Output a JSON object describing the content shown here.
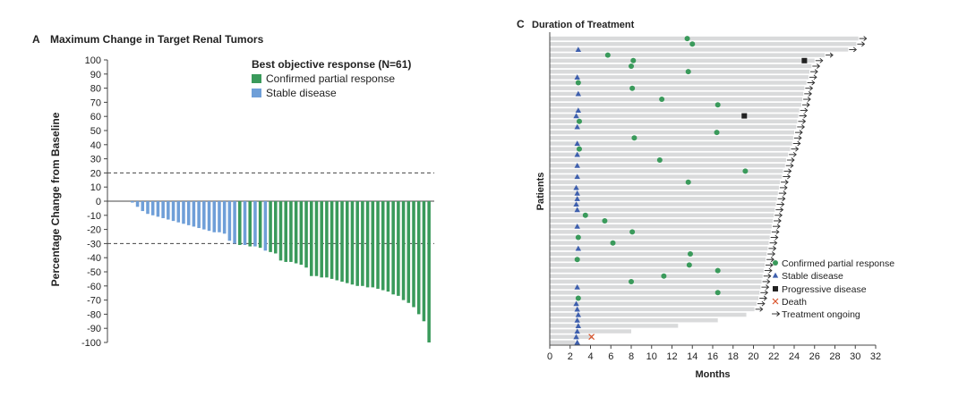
{
  "colors": {
    "partial": "#3a9a5b",
    "stable": "#6f9fd8",
    "bar_c": "#d9dadb",
    "triangle": "#3e5fad",
    "progressive": "#222222",
    "death": "#d9542b",
    "axis": "#444444"
  },
  "chart_data": [
    {
      "type": "bar",
      "panel_label": "A",
      "title": "Maximum Change in Target Renal Tumors",
      "ylabel": "Percentage Change from Baseline",
      "xlabel": "",
      "ylim": [
        -100,
        100
      ],
      "yticks": [
        100,
        90,
        80,
        70,
        60,
        50,
        40,
        30,
        20,
        10,
        0,
        -10,
        -20,
        -30,
        -40,
        -50,
        -60,
        -70,
        -80,
        -90,
        -100
      ],
      "reference_lines": [
        20,
        -30
      ],
      "legend": {
        "title": "Best objective response (N=61)",
        "placement": "top-right",
        "entries": [
          {
            "label": "Confirmed partial response",
            "color_key": "partial"
          },
          {
            "label": "Stable disease",
            "color_key": "stable"
          }
        ]
      },
      "bars": [
        {
          "value": -1,
          "response": "stable"
        },
        {
          "value": -4,
          "response": "stable"
        },
        {
          "value": -7,
          "response": "stable"
        },
        {
          "value": -9,
          "response": "stable"
        },
        {
          "value": -10,
          "response": "stable"
        },
        {
          "value": -11,
          "response": "stable"
        },
        {
          "value": -12,
          "response": "stable"
        },
        {
          "value": -13,
          "response": "stable"
        },
        {
          "value": -14,
          "response": "stable"
        },
        {
          "value": -15,
          "response": "stable"
        },
        {
          "value": -16,
          "response": "stable"
        },
        {
          "value": -17,
          "response": "stable"
        },
        {
          "value": -18,
          "response": "stable"
        },
        {
          "value": -19,
          "response": "stable"
        },
        {
          "value": -20,
          "response": "stable"
        },
        {
          "value": -21,
          "response": "stable"
        },
        {
          "value": -22,
          "response": "stable"
        },
        {
          "value": -22,
          "response": "stable"
        },
        {
          "value": -23,
          "response": "stable"
        },
        {
          "value": -28,
          "response": "stable"
        },
        {
          "value": -30,
          "response": "stable"
        },
        {
          "value": -31,
          "response": "partial"
        },
        {
          "value": -31,
          "response": "stable"
        },
        {
          "value": -32,
          "response": "partial"
        },
        {
          "value": -32,
          "response": "stable"
        },
        {
          "value": -33,
          "response": "partial"
        },
        {
          "value": -35,
          "response": "stable"
        },
        {
          "value": -36,
          "response": "partial"
        },
        {
          "value": -37,
          "response": "partial"
        },
        {
          "value": -42,
          "response": "partial"
        },
        {
          "value": -43,
          "response": "partial"
        },
        {
          "value": -43,
          "response": "partial"
        },
        {
          "value": -44,
          "response": "partial"
        },
        {
          "value": -45,
          "response": "partial"
        },
        {
          "value": -47,
          "response": "partial"
        },
        {
          "value": -53,
          "response": "partial"
        },
        {
          "value": -53,
          "response": "partial"
        },
        {
          "value": -54,
          "response": "partial"
        },
        {
          "value": -54,
          "response": "partial"
        },
        {
          "value": -55,
          "response": "partial"
        },
        {
          "value": -56,
          "response": "partial"
        },
        {
          "value": -57,
          "response": "partial"
        },
        {
          "value": -58,
          "response": "partial"
        },
        {
          "value": -59,
          "response": "partial"
        },
        {
          "value": -60,
          "response": "partial"
        },
        {
          "value": -60,
          "response": "partial"
        },
        {
          "value": -61,
          "response": "partial"
        },
        {
          "value": -61,
          "response": "partial"
        },
        {
          "value": -62,
          "response": "partial"
        },
        {
          "value": -63,
          "response": "partial"
        },
        {
          "value": -64,
          "response": "partial"
        },
        {
          "value": -66,
          "response": "partial"
        },
        {
          "value": -67,
          "response": "partial"
        },
        {
          "value": -70,
          "response": "partial"
        },
        {
          "value": -72,
          "response": "partial"
        },
        {
          "value": -75,
          "response": "partial"
        },
        {
          "value": -80,
          "response": "partial"
        },
        {
          "value": -85,
          "response": "partial"
        },
        {
          "value": -100,
          "response": "partial"
        }
      ]
    },
    {
      "type": "swimmer",
      "panel_label": "C",
      "title": "Duration of Treatment",
      "xlabel": "Months",
      "ylabel": "Patients",
      "xlim": [
        0,
        32
      ],
      "xticks": [
        0,
        2,
        4,
        6,
        8,
        10,
        12,
        14,
        16,
        18,
        20,
        22,
        24,
        26,
        28,
        30,
        32
      ],
      "legend": {
        "placement": "bottom-right",
        "entries": [
          {
            "label": "Confirmed partial response",
            "symbol": "circle",
            "color_key": "partial"
          },
          {
            "label": "Stable disease",
            "symbol": "triangle",
            "color_key": "triangle"
          },
          {
            "label": "Progressive disease",
            "symbol": "square",
            "color_key": "progressive"
          },
          {
            "label": "Death",
            "symbol": "x",
            "color_key": "death"
          },
          {
            "label": "Treatment ongoing",
            "symbol": "arrow",
            "color_key": "axis"
          }
        ]
      },
      "patients": [
        {
          "duration": 30.3,
          "ongoing": true,
          "events": [
            {
              "type": "partial",
              "t": 13.5
            }
          ]
        },
        {
          "duration": 30.1,
          "ongoing": true,
          "events": [
            {
              "type": "partial",
              "t": 14.0
            }
          ]
        },
        {
          "duration": 29.3,
          "ongoing": true,
          "events": [
            {
              "type": "stable",
              "t": 2.8
            }
          ]
        },
        {
          "duration": 27.0,
          "ongoing": true,
          "events": [
            {
              "type": "partial",
              "t": 5.7
            }
          ]
        },
        {
          "duration": 26.0,
          "ongoing": true,
          "events": [
            {
              "type": "partial",
              "t": 8.2
            },
            {
              "type": "progressive",
              "t": 25.0
            }
          ]
        },
        {
          "duration": 25.7,
          "ongoing": true,
          "events": [
            {
              "type": "partial",
              "t": 8.0
            }
          ]
        },
        {
          "duration": 25.5,
          "ongoing": true,
          "events": [
            {
              "type": "partial",
              "t": 13.6
            }
          ]
        },
        {
          "duration": 25.4,
          "ongoing": true,
          "events": [
            {
              "type": "stable",
              "t": 2.7
            }
          ]
        },
        {
          "duration": 25.2,
          "ongoing": true,
          "events": [
            {
              "type": "partial",
              "t": 2.8
            }
          ]
        },
        {
          "duration": 25.0,
          "ongoing": true,
          "events": [
            {
              "type": "partial",
              "t": 8.1
            }
          ]
        },
        {
          "duration": 24.9,
          "ongoing": true,
          "events": [
            {
              "type": "stable",
              "t": 2.8
            }
          ]
        },
        {
          "duration": 24.8,
          "ongoing": true,
          "events": [
            {
              "type": "partial",
              "t": 11.0
            }
          ]
        },
        {
          "duration": 24.7,
          "ongoing": true,
          "events": [
            {
              "type": "partial",
              "t": 16.5
            }
          ]
        },
        {
          "duration": 24.5,
          "ongoing": true,
          "events": [
            {
              "type": "stable",
              "t": 2.8
            }
          ]
        },
        {
          "duration": 24.4,
          "ongoing": true,
          "events": [
            {
              "type": "stable",
              "t": 2.6
            },
            {
              "type": "progressive",
              "t": 19.1
            }
          ]
        },
        {
          "duration": 24.3,
          "ongoing": true,
          "events": [
            {
              "type": "partial",
              "t": 2.9
            }
          ]
        },
        {
          "duration": 24.2,
          "ongoing": true,
          "events": [
            {
              "type": "stable",
              "t": 2.7
            }
          ]
        },
        {
          "duration": 24.0,
          "ongoing": true,
          "events": [
            {
              "type": "partial",
              "t": 16.4
            }
          ]
        },
        {
          "duration": 23.9,
          "ongoing": true,
          "events": [
            {
              "type": "partial",
              "t": 8.3
            }
          ]
        },
        {
          "duration": 23.8,
          "ongoing": true,
          "events": [
            {
              "type": "stable",
              "t": 2.7
            }
          ]
        },
        {
          "duration": 23.6,
          "ongoing": true,
          "events": [
            {
              "type": "partial",
              "t": 2.9
            }
          ]
        },
        {
          "duration": 23.4,
          "ongoing": true,
          "events": [
            {
              "type": "stable",
              "t": 2.7
            }
          ]
        },
        {
          "duration": 23.2,
          "ongoing": true,
          "events": [
            {
              "type": "partial",
              "t": 10.8
            }
          ]
        },
        {
          "duration": 23.1,
          "ongoing": true,
          "events": [
            {
              "type": "stable",
              "t": 2.7
            }
          ]
        },
        {
          "duration": 22.9,
          "ongoing": true,
          "events": [
            {
              "type": "partial",
              "t": 19.2
            }
          ]
        },
        {
          "duration": 22.8,
          "ongoing": true,
          "events": [
            {
              "type": "stable",
              "t": 2.7
            }
          ]
        },
        {
          "duration": 22.6,
          "ongoing": true,
          "events": [
            {
              "type": "partial",
              "t": 13.6
            }
          ]
        },
        {
          "duration": 22.5,
          "ongoing": true,
          "events": [
            {
              "type": "stable",
              "t": 2.6
            }
          ]
        },
        {
          "duration": 22.4,
          "ongoing": true,
          "events": [
            {
              "type": "stable",
              "t": 2.7
            }
          ]
        },
        {
          "duration": 22.3,
          "ongoing": true,
          "events": [
            {
              "type": "stable",
              "t": 2.7
            }
          ]
        },
        {
          "duration": 22.2,
          "ongoing": true,
          "events": [
            {
              "type": "stable",
              "t": 2.6
            }
          ]
        },
        {
          "duration": 22.1,
          "ongoing": true,
          "events": [
            {
              "type": "stable",
              "t": 2.7
            }
          ]
        },
        {
          "duration": 22.0,
          "ongoing": true,
          "events": [
            {
              "type": "partial",
              "t": 3.5
            }
          ]
        },
        {
          "duration": 21.9,
          "ongoing": true,
          "events": [
            {
              "type": "partial",
              "t": 5.4
            }
          ]
        },
        {
          "duration": 21.8,
          "ongoing": true,
          "events": [
            {
              "type": "stable",
              "t": 2.7
            }
          ]
        },
        {
          "duration": 21.7,
          "ongoing": true,
          "events": [
            {
              "type": "partial",
              "t": 8.1
            }
          ]
        },
        {
          "duration": 21.6,
          "ongoing": true,
          "events": [
            {
              "type": "partial",
              "t": 2.8
            }
          ]
        },
        {
          "duration": 21.5,
          "ongoing": true,
          "events": [
            {
              "type": "partial",
              "t": 6.2
            }
          ]
        },
        {
          "duration": 21.4,
          "ongoing": true,
          "events": [
            {
              "type": "stable",
              "t": 2.8
            }
          ]
        },
        {
          "duration": 21.3,
          "ongoing": true,
          "events": [
            {
              "type": "partial",
              "t": 13.8
            }
          ]
        },
        {
          "duration": 21.2,
          "ongoing": true,
          "events": [
            {
              "type": "partial",
              "t": 2.7
            }
          ]
        },
        {
          "duration": 21.1,
          "ongoing": true,
          "events": [
            {
              "type": "partial",
              "t": 13.7
            }
          ]
        },
        {
          "duration": 21.0,
          "ongoing": true,
          "events": [
            {
              "type": "partial",
              "t": 16.5
            }
          ]
        },
        {
          "duration": 20.9,
          "ongoing": true,
          "events": [
            {
              "type": "partial",
              "t": 11.2
            }
          ]
        },
        {
          "duration": 20.8,
          "ongoing": true,
          "events": [
            {
              "type": "partial",
              "t": 8.0
            }
          ]
        },
        {
          "duration": 20.7,
          "ongoing": true,
          "events": [
            {
              "type": "stable",
              "t": 2.7
            }
          ]
        },
        {
          "duration": 20.6,
          "ongoing": true,
          "events": [
            {
              "type": "partial",
              "t": 16.5
            }
          ]
        },
        {
          "duration": 20.5,
          "ongoing": true,
          "events": [
            {
              "type": "partial",
              "t": 2.8
            }
          ]
        },
        {
          "duration": 20.3,
          "ongoing": true,
          "events": [
            {
              "type": "stable",
              "t": 2.6
            }
          ]
        },
        {
          "duration": 20.1,
          "ongoing": true,
          "events": [
            {
              "type": "stable",
              "t": 2.7
            }
          ]
        },
        {
          "duration": 19.3,
          "ongoing": false,
          "events": [
            {
              "type": "stable",
              "t": 2.8
            }
          ]
        },
        {
          "duration": 16.5,
          "ongoing": false,
          "events": [
            {
              "type": "stable",
              "t": 2.7
            }
          ]
        },
        {
          "duration": 12.6,
          "ongoing": false,
          "events": [
            {
              "type": "stable",
              "t": 2.8
            }
          ]
        },
        {
          "duration": 8.0,
          "ongoing": false,
          "events": [
            {
              "type": "stable",
              "t": 2.7
            }
          ]
        },
        {
          "duration": 4.2,
          "ongoing": false,
          "events": [
            {
              "type": "stable",
              "t": 2.6
            },
            {
              "type": "death",
              "t": 4.1
            }
          ]
        },
        {
          "duration": 2.5,
          "ongoing": false,
          "events": [
            {
              "type": "stable",
              "t": 2.7
            }
          ]
        }
      ]
    }
  ]
}
